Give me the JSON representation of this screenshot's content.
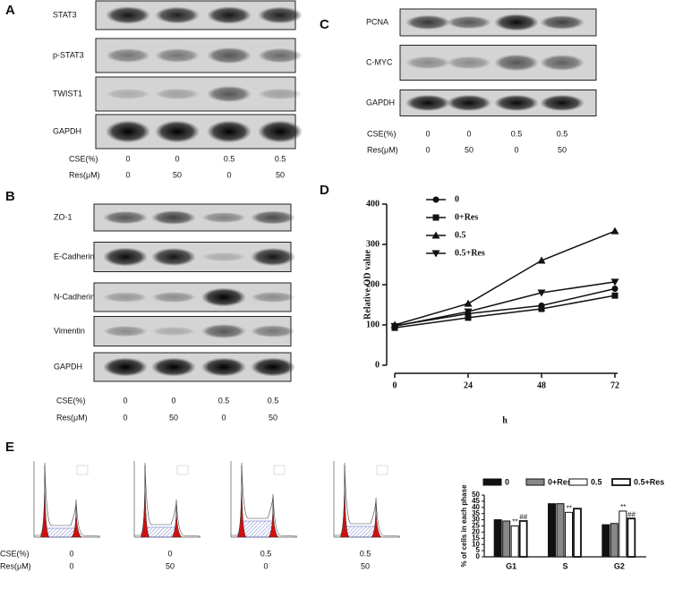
{
  "panel_labels": [
    "A",
    "B",
    "C",
    "D",
    "E"
  ],
  "blots": {
    "A": {
      "rows": [
        "STAT3",
        "p-STAT3",
        "TWIST1",
        "GAPDH"
      ],
      "conditions": [
        {
          "label": "CSE(%)",
          "values": [
            "0",
            "0",
            "0.5",
            "0.5"
          ]
        },
        {
          "label": "Res(μM)",
          "values": [
            "0",
            "50",
            "0",
            "50"
          ]
        }
      ]
    },
    "B": {
      "rows": [
        "ZO-1",
        "E-Cadherin",
        "N-Cadherin",
        "Vimentin",
        "GAPDH"
      ],
      "conditions": [
        {
          "label": "CSE(%)",
          "values": [
            "0",
            "0",
            "0.5",
            "0.5"
          ]
        },
        {
          "label": "Res(μM)",
          "values": [
            "0",
            "50",
            "0",
            "50"
          ]
        }
      ]
    },
    "C": {
      "rows": [
        "PCNA",
        "C-MYC",
        "GAPDH"
      ],
      "conditions": [
        {
          "label": "CSE(%)",
          "values": [
            "0",
            "0",
            "0.5",
            "0.5"
          ]
        },
        {
          "label": "Res(μM)",
          "values": [
            "0",
            "50",
            "0",
            "50"
          ]
        }
      ]
    },
    "E": {
      "rows": [],
      "conditions": [
        {
          "label": "CSE(%)",
          "values": [
            "0",
            "0",
            "0.5",
            "0.5"
          ]
        },
        {
          "label": "Res(μM)",
          "values": [
            "0",
            "50",
            "0",
            "50"
          ]
        }
      ]
    }
  },
  "chart_data": [
    {
      "type": "line",
      "xlabel": "h",
      "ylabel": "Relative OD value",
      "x": [
        0,
        24,
        48,
        72
      ],
      "xlim": [
        0,
        72
      ],
      "xticks": [
        0,
        24,
        48,
        72
      ],
      "ylim": [
        0,
        400
      ],
      "yticks": [
        0,
        100,
        200,
        300,
        400
      ],
      "legend": "upper left",
      "series": [
        {
          "name": "0",
          "color": "#111111",
          "marker": "circle",
          "values": [
            98,
            128,
            148,
            190
          ]
        },
        {
          "name": "0+Res",
          "color": "#111111",
          "marker": "square",
          "values": [
            93,
            118,
            140,
            173
          ]
        },
        {
          "name": "0.5",
          "color": "#111111",
          "marker": "triangle",
          "values": [
            100,
            153,
            260,
            333
          ]
        },
        {
          "name": "0.5+Res",
          "color": "#111111",
          "marker": "triangle-down",
          "values": [
            97,
            133,
            180,
            207
          ]
        }
      ]
    },
    {
      "type": "bar",
      "ylabel": "% of cells in each phase",
      "categories": [
        "G1",
        "S",
        "G2"
      ],
      "ylim": [
        0,
        50
      ],
      "yticks": [
        0,
        5,
        10,
        15,
        20,
        25,
        30,
        35,
        40,
        45,
        50
      ],
      "legend": "top",
      "series": [
        {
          "name": "0",
          "color": "#111111",
          "values": [
            30,
            43,
            26
          ]
        },
        {
          "name": "0+Res",
          "color": "#888888",
          "values": [
            29,
            43,
            27
          ]
        },
        {
          "name": "0.5",
          "color": "#ffffff",
          "values": [
            25,
            36,
            37
          ]
        },
        {
          "name": "0.5+Res",
          "color": "#ffffff",
          "values": [
            29,
            39,
            31
          ]
        }
      ],
      "annotations": [
        "**",
        "##",
        "**",
        "**",
        "##"
      ]
    }
  ]
}
